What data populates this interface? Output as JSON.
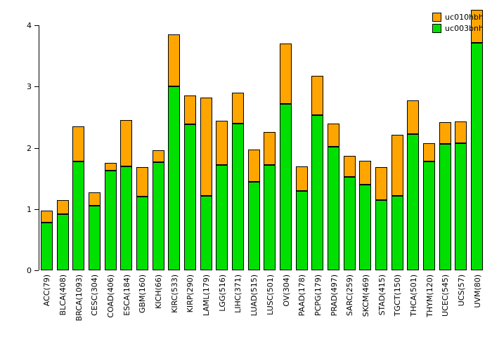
{
  "figure": {
    "background": "#ffffff",
    "axis_color": "#000000",
    "bar_border_color": "#000000"
  },
  "chart_data": {
    "type": "bar",
    "stacked": true,
    "title": "",
    "xlabel": "",
    "ylabel": "",
    "categories": [
      "ACC(79)",
      "BLCA(408)",
      "BRCA(1093)",
      "CESC(304)",
      "COAD(406)",
      "ESCA(184)",
      "GBM(160)",
      "KICH(66)",
      "KIRC(533)",
      "KIRP(290)",
      "LAML(179)",
      "LGG(516)",
      "LIHC(371)",
      "LUAD(515)",
      "LUSC(501)",
      "OV(304)",
      "PAAD(178)",
      "PCPG(179)",
      "PRAD(497)",
      "SARC(259)",
      "SKCM(469)",
      "STAD(415)",
      "TGCT(150)",
      "THCA(501)",
      "THYM(120)",
      "UCEC(545)",
      "UCS(57)",
      "UVM(80)"
    ],
    "series": [
      {
        "name": "uc003bnh",
        "color": "#00E000",
        "values": [
          0.78,
          0.92,
          1.78,
          1.05,
          1.63,
          1.7,
          1.2,
          1.77,
          3.0,
          2.38,
          1.22,
          1.72,
          2.4,
          1.44,
          1.72,
          2.72,
          1.3,
          2.53,
          2.02,
          1.53,
          1.4,
          1.15,
          1.22,
          2.22,
          1.78,
          2.06,
          2.07,
          3.72
        ]
      },
      {
        "name": "uc010hbh",
        "color": "#FFA500",
        "values": [
          0.19,
          0.23,
          0.57,
          0.22,
          0.12,
          0.75,
          0.48,
          0.19,
          0.85,
          0.47,
          1.6,
          0.72,
          0.5,
          0.53,
          0.54,
          0.98,
          0.4,
          0.65,
          0.38,
          0.34,
          0.39,
          0.53,
          0.99,
          0.55,
          0.29,
          0.36,
          0.36,
          0.53
        ]
      }
    ],
    "ylim": [
      0,
      4.3
    ],
    "yticks": [
      0,
      1,
      2,
      3,
      4
    ],
    "grid": false,
    "legend_position": "top-right",
    "legend_order": [
      "uc010hbh",
      "uc003bnh"
    ]
  }
}
